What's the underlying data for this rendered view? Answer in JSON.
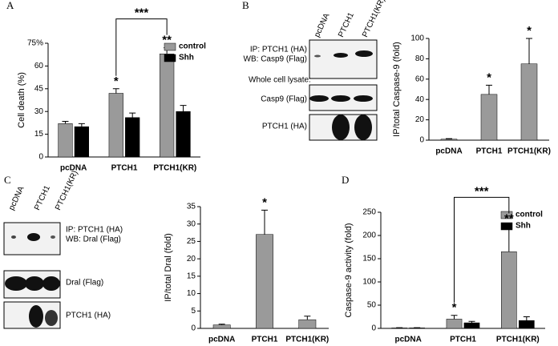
{
  "panel_labels": [
    "A",
    "B",
    "C",
    "D"
  ],
  "blots": {
    "b": {
      "lanes": [
        "pcDNA",
        "PTCH1",
        "PTCH1(KR)"
      ],
      "ip_label": [
        "IP: PTCH1 (HA)",
        "WB: Casp9 (Flag)"
      ],
      "lysate": "Whole cell lysate:",
      "rows": [
        "Casp9 (Flag)",
        "PTCH1 (HA)"
      ]
    },
    "c": {
      "lanes": [
        "pcDNA",
        "PTCH1",
        "PTCH1(KR)"
      ],
      "ip_label": [
        "IP: PTCH1 (HA)",
        "WB: Dral (Flag)"
      ],
      "rows": [
        "Dral (Flag)",
        "PTCH1 (HA)"
      ]
    }
  },
  "chart_data": [
    {
      "type": "bar",
      "y_label": "Cell death (%)",
      "categories": [
        "pcDNA",
        "PTCH1",
        "PTCH1(KR)"
      ],
      "series": [
        {
          "name": "control",
          "color": "#9a9a9a",
          "values": [
            22,
            42,
            68
          ],
          "errors": [
            1.5,
            3,
            4
          ]
        },
        {
          "name": "Shh",
          "color": "#000000",
          "values": [
            20,
            26,
            30
          ],
          "errors": [
            2,
            3,
            4
          ]
        }
      ],
      "ylim": [
        0,
        75
      ],
      "yticks": [
        0,
        15,
        30,
        45,
        {
          "value": 60,
          "label": "60"
        },
        {
          "value": 75,
          "label": "75%"
        }
      ],
      "legend": "top-right",
      "annotations": [
        "*",
        "**",
        "***"
      ]
    },
    {
      "type": "bar",
      "y_label": "IP/total Caspase-9 (fold)",
      "categories": [
        "pcDNA",
        "PTCH1",
        "PTCH1(KR)"
      ],
      "series": [
        {
          "name": "",
          "color": "#9a9a9a",
          "values": [
            1,
            45,
            75
          ],
          "errors": [
            0.5,
            9,
            25
          ]
        }
      ],
      "ylim": [
        0,
        100
      ],
      "yticks": [
        0,
        20,
        40,
        60,
        80,
        100
      ],
      "annotations": [
        "*",
        "*"
      ]
    },
    {
      "type": "bar",
      "y_label": "IP/total Dral (fold)",
      "categories": [
        "pcDNA",
        "PTCH1",
        "PTCH1(KR)"
      ],
      "series": [
        {
          "name": "",
          "color": "#9a9a9a",
          "values": [
            1,
            27,
            2.5
          ],
          "errors": [
            0.2,
            7,
            1
          ]
        }
      ],
      "ylim": [
        0,
        35
      ],
      "yticks": [
        0,
        5,
        10,
        15,
        20,
        25,
        30,
        35
      ],
      "annotations": [
        "*"
      ]
    },
    {
      "type": "bar",
      "y_label": "Caspase-9 activity (fold)",
      "categories": [
        "pcDNA",
        "PTCH1",
        "PTCH1(KR)"
      ],
      "series": [
        {
          "name": "control",
          "color": "#9a9a9a",
          "values": [
            1,
            20,
            165
          ],
          "errors": [
            0.5,
            8,
            55
          ]
        },
        {
          "name": "Shh",
          "color": "#000000",
          "values": [
            1,
            12,
            17
          ],
          "errors": [
            0.5,
            3,
            8
          ]
        }
      ],
      "ylim": [
        0,
        250
      ],
      "yticks": [
        0,
        50,
        100,
        150,
        200,
        250
      ],
      "legend": "top-right",
      "annotations": [
        "*",
        "**",
        "***"
      ]
    }
  ]
}
